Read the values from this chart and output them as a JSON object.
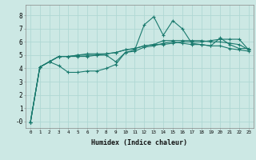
{
  "title": "",
  "xlabel": "Humidex (Indice chaleur)",
  "ylabel": "",
  "bg_color": "#cce8e4",
  "line_color": "#1a7a6e",
  "grid_color": "#b0d8d4",
  "x_ticks": [
    0,
    1,
    2,
    3,
    4,
    5,
    6,
    7,
    8,
    9,
    10,
    11,
    12,
    13,
    14,
    15,
    16,
    17,
    18,
    19,
    20,
    21,
    22,
    23
  ],
  "y_ticks": [
    0,
    1,
    2,
    3,
    4,
    5,
    6,
    7,
    8
  ],
  "y_tick_labels": [
    "-0",
    "1",
    "2",
    "3",
    "4",
    "5",
    "6",
    "7",
    "8"
  ],
  "ylim": [
    -0.5,
    8.8
  ],
  "xlim": [
    -0.5,
    23.5
  ],
  "lines": [
    [
      -0.1,
      4.1,
      4.5,
      4.2,
      3.7,
      3.7,
      3.8,
      3.8,
      4.0,
      4.3,
      5.2,
      5.4,
      7.3,
      7.9,
      6.5,
      7.6,
      7.0,
      5.9,
      5.8,
      5.7,
      6.3,
      5.8,
      5.5,
      5.5
    ],
    [
      -0.1,
      4.1,
      4.5,
      4.9,
      4.9,
      5.0,
      5.1,
      5.1,
      5.1,
      5.2,
      5.4,
      5.5,
      5.7,
      5.8,
      5.8,
      5.9,
      6.0,
      6.0,
      6.0,
      6.1,
      6.2,
      6.2,
      6.2,
      5.4
    ],
    [
      -0.1,
      4.1,
      4.5,
      4.9,
      4.9,
      5.0,
      5.0,
      5.0,
      5.1,
      5.2,
      5.4,
      5.5,
      5.7,
      5.8,
      6.1,
      6.1,
      6.1,
      6.1,
      6.1,
      6.0,
      6.0,
      5.9,
      5.8,
      5.4
    ],
    [
      -0.1,
      4.1,
      4.5,
      4.9,
      4.9,
      4.9,
      4.9,
      5.0,
      5.0,
      4.5,
      5.2,
      5.3,
      5.6,
      5.7,
      5.9,
      6.0,
      5.9,
      5.8,
      5.8,
      5.7,
      5.7,
      5.5,
      5.4,
      5.3
    ]
  ]
}
